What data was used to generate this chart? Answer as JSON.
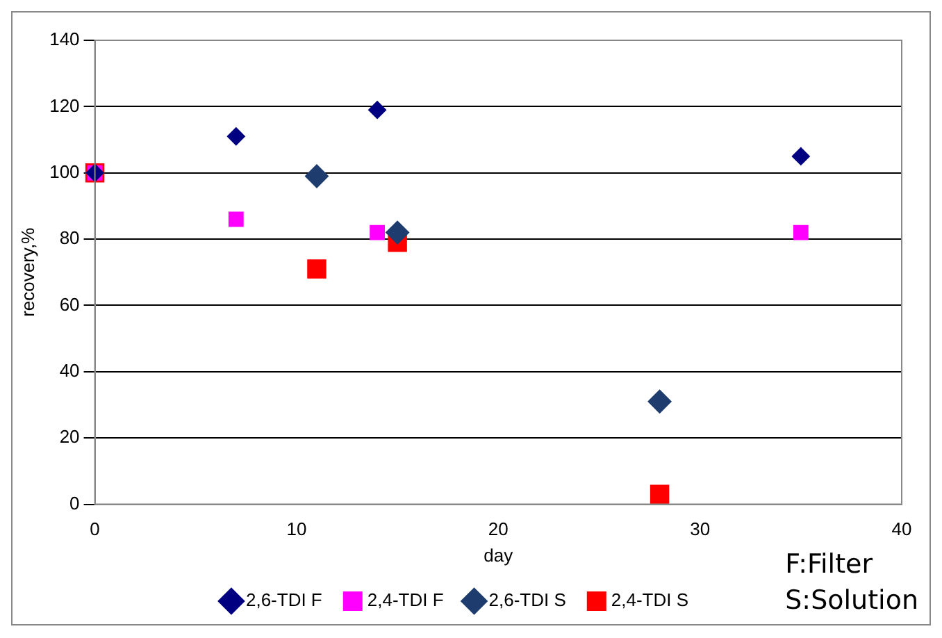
{
  "chart_data": {
    "type": "scatter",
    "xlabel": "day",
    "ylabel": "recovery,%",
    "xlim": [
      0,
      40
    ],
    "xticks": [
      0,
      10,
      20,
      30,
      40
    ],
    "ylim": [
      0,
      140
    ],
    "yticks": [
      0,
      20,
      40,
      60,
      80,
      100,
      120,
      140
    ],
    "grid": "y",
    "legend": "bottom",
    "annotations": [
      "F:Filter",
      "S:Solution"
    ],
    "series": [
      {
        "name": "2,6-TDI F",
        "color": "#000080",
        "marker": "diamond",
        "x": [
          0,
          7,
          14,
          35
        ],
        "values": [
          100,
          111,
          119,
          105
        ]
      },
      {
        "name": "2,4-TDI F",
        "color": "#ff00ff",
        "marker": "square",
        "x": [
          0,
          7,
          14,
          35
        ],
        "values": [
          100,
          86,
          82,
          82
        ]
      },
      {
        "name": "2,6-TDI S",
        "color": "#1f3c6e",
        "marker": "diamond",
        "x": [
          11,
          15,
          28
        ],
        "values": [
          99,
          82,
          31
        ]
      },
      {
        "name": "2,4-TDI S",
        "color": "#ff0000",
        "marker": "square",
        "x": [
          0,
          11,
          15,
          28
        ],
        "values": [
          100,
          71,
          79,
          3
        ]
      }
    ]
  }
}
